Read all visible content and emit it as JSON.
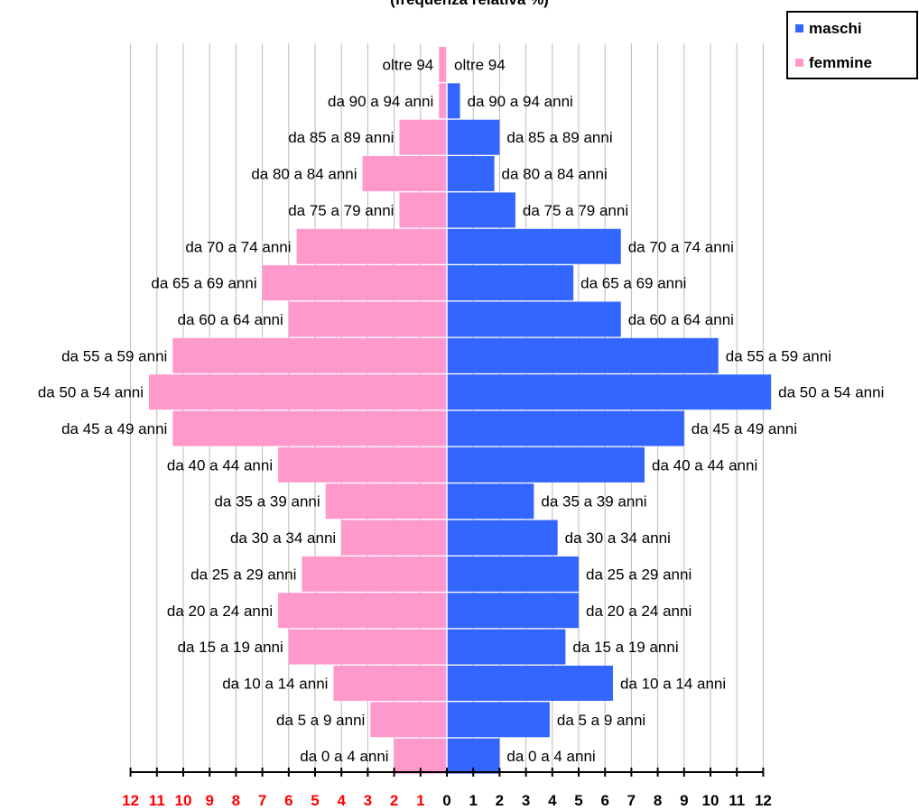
{
  "chart_data": {
    "type": "bar",
    "orientation": "horizontal",
    "layout": "population-pyramid",
    "title": "(frequenza relativa %)",
    "categories": [
      "da 0 a 4 anni",
      "da 5 a 9 anni",
      "da 10 a 14 anni",
      "da 15 a 19 anni",
      "da 20 a 24 anni",
      "da 25 a 29 anni",
      "da 30 a 34 anni",
      "da 35 a 39 anni",
      "da 40 a 44 anni",
      "da 45 a 49 anni",
      "da 50 a 54 anni",
      "da 55 a 59 anni",
      "da 60 a 64 anni",
      "da 65 a 69 anni",
      "da 70 a 74 anni",
      "da 75 a 79 anni",
      "da 80 a 84 anni",
      "da 85 a 89 anni",
      "da 90 a 94 anni",
      "oltre 94"
    ],
    "series": [
      {
        "name": "maschi",
        "side": "right",
        "color": "#3366ff",
        "values": [
          2.0,
          3.9,
          6.3,
          4.5,
          5.0,
          5.0,
          4.2,
          3.3,
          7.5,
          9.0,
          12.3,
          10.3,
          6.6,
          4.8,
          6.6,
          2.6,
          1.8,
          2.0,
          0.5,
          0.0
        ]
      },
      {
        "name": "femmine",
        "side": "left",
        "color": "#ff99cc",
        "values": [
          2.0,
          2.9,
          4.3,
          6.0,
          6.4,
          5.5,
          4.0,
          4.6,
          6.4,
          10.4,
          11.3,
          10.4,
          6.0,
          7.0,
          5.7,
          1.8,
          3.2,
          1.8,
          0.3,
          0.3
        ]
      }
    ],
    "xlim": [
      -12,
      12
    ],
    "ticks_left": [
      "12",
      "11",
      "10",
      "9",
      "8",
      "7",
      "6",
      "5",
      "4",
      "3",
      "2",
      "1"
    ],
    "ticks_right": [
      "0",
      "1",
      "2",
      "3",
      "4",
      "5",
      "6",
      "7",
      "8",
      "9",
      "10",
      "11",
      "12"
    ],
    "tick_colors": {
      "left": "#ff0000",
      "right": "#000000"
    },
    "grid": true,
    "legend": {
      "position": "top-right",
      "items": [
        "maschi",
        "femmine"
      ]
    }
  }
}
